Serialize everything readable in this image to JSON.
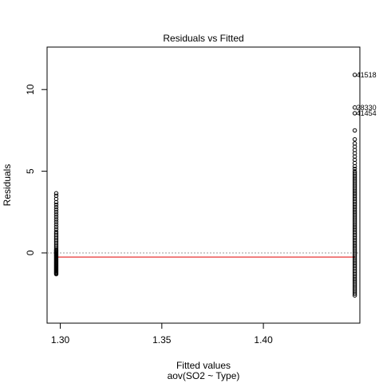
{
  "chart_data": {
    "type": "scatter",
    "title": "Residuals vs Fitted",
    "xlabel": "Fitted values",
    "sublabel": "aov(SO2 ~ Type)",
    "ylabel": "Residuals",
    "xlim": [
      1.2935,
      1.4475
    ],
    "ylim": [
      -4.3,
      12.6
    ],
    "xticks": [
      {
        "value": 1.3,
        "label": "1.30"
      },
      {
        "value": 1.35,
        "label": "1.35"
      },
      {
        "value": 1.4,
        "label": "1.40"
      }
    ],
    "yticks": [
      {
        "value": 0,
        "label": "0"
      },
      {
        "value": 5,
        "label": "5"
      },
      {
        "value": 10,
        "label": "10"
      }
    ],
    "reference_line": {
      "y": 0,
      "style": "dotted",
      "color": "#999999"
    },
    "smooth_line": {
      "y": -0.25,
      "color": "#e00000"
    },
    "groups": [
      {
        "fitted": 1.298,
        "residuals": [
          -1.3,
          -1.25,
          -1.2,
          -1.15,
          -1.1,
          -1.05,
          -1.0,
          -0.95,
          -0.9,
          -0.85,
          -0.8,
          -0.75,
          -0.7,
          -0.65,
          -0.6,
          -0.55,
          -0.5,
          -0.45,
          -0.4,
          -0.35,
          -0.3,
          -0.25,
          -0.2,
          -0.15,
          -0.1,
          -0.05,
          0.0,
          0.05,
          0.1,
          0.15,
          0.2,
          0.3,
          0.4,
          0.5,
          0.6,
          0.7,
          0.8,
          0.9,
          1.0,
          1.1,
          1.2,
          1.3,
          1.45,
          1.6,
          1.75,
          1.9,
          2.05,
          2.2,
          2.35,
          2.5,
          2.65,
          2.8,
          2.95,
          3.1,
          3.3,
          3.5,
          3.65
        ]
      },
      {
        "fitted": 1.445,
        "residuals": [
          -2.6,
          -2.5,
          -2.4,
          -2.3,
          -2.2,
          -2.1,
          -2.0,
          -1.9,
          -1.8,
          -1.7,
          -1.6,
          -1.5,
          -1.4,
          -1.3,
          -1.2,
          -1.1,
          -1.0,
          -0.9,
          -0.8,
          -0.7,
          -0.6,
          -0.5,
          -0.4,
          -0.3,
          -0.2,
          -0.1,
          0.0,
          0.1,
          0.2,
          0.3,
          0.4,
          0.5,
          0.6,
          0.7,
          0.8,
          0.9,
          1.0,
          1.1,
          1.2,
          1.3,
          1.4,
          1.5,
          1.6,
          1.7,
          1.8,
          1.9,
          2.0,
          2.1,
          2.2,
          2.3,
          2.4,
          2.5,
          2.6,
          2.7,
          2.8,
          2.9,
          3.0,
          3.1,
          3.2,
          3.3,
          3.4,
          3.5,
          3.6,
          3.7,
          3.8,
          3.9,
          4.0,
          4.1,
          4.2,
          4.3,
          4.4,
          4.5,
          4.6,
          4.7,
          4.8,
          4.9,
          5.0,
          5.15,
          5.3,
          5.5,
          5.7,
          5.9,
          6.1,
          6.3,
          6.5,
          6.7,
          6.95,
          7.5,
          8.55,
          8.9,
          10.9
        ]
      }
    ],
    "labeled_points": [
      {
        "fitted": 1.445,
        "residual": 10.9,
        "label": "41518"
      },
      {
        "fitted": 1.445,
        "residual": 8.9,
        "label": "28330"
      },
      {
        "fitted": 1.445,
        "residual": 8.55,
        "label": "41454"
      }
    ]
  }
}
